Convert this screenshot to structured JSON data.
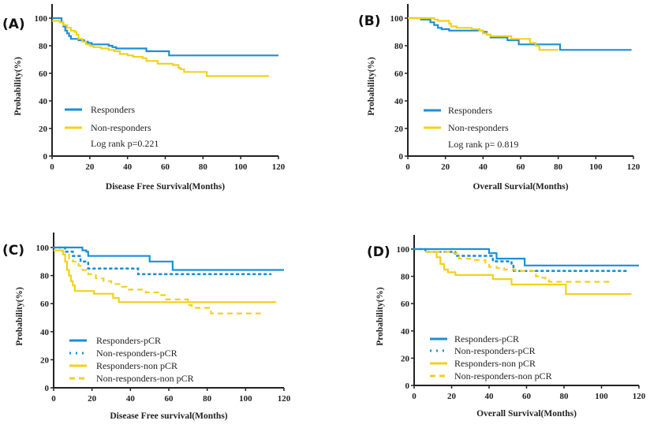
{
  "colors": {
    "blue": "#1b8fd5",
    "yellow": "#f2d11b",
    "axis": "#222222"
  },
  "chart_data": [
    {
      "type": "line",
      "step": true,
      "panel_label": "(A)",
      "xlabel": "Disease Free Survival(Months)",
      "ylabel": "Probability(%)",
      "xlim": [
        0,
        120
      ],
      "ylim": [
        0,
        110
      ],
      "xticks": [
        0,
        20,
        40,
        60,
        80,
        100,
        120
      ],
      "yticks": [
        0,
        20,
        40,
        60,
        80,
        100
      ],
      "grid": false,
      "legend_placement": "lower-left",
      "annotation": "Log rank p=0.221",
      "series": [
        {
          "name": "Responders",
          "color": "blue",
          "style": "solid",
          "points": [
            [
              0,
              100
            ],
            [
              3,
              100
            ],
            [
              5,
              97
            ],
            [
              6,
              94
            ],
            [
              7,
              91
            ],
            [
              8,
              89
            ],
            [
              9,
              87
            ],
            [
              10,
              85
            ],
            [
              14,
              84
            ],
            [
              17,
              83
            ],
            [
              19,
              82
            ],
            [
              21,
              81
            ],
            [
              30,
              80
            ],
            [
              32,
              79
            ],
            [
              34,
              78
            ],
            [
              50,
              78
            ],
            [
              50,
              76
            ],
            [
              62,
              76
            ],
            [
              62,
              73
            ],
            [
              120,
              73
            ]
          ]
        },
        {
          "name": "Non-responders",
          "color": "yellow",
          "style": "solid",
          "points": [
            [
              0,
              98
            ],
            [
              4,
              97
            ],
            [
              6,
              95
            ],
            [
              8,
              93
            ],
            [
              10,
              91
            ],
            [
              12,
              90
            ],
            [
              13,
              88
            ],
            [
              14,
              85
            ],
            [
              16,
              83
            ],
            [
              18,
              81
            ],
            [
              20,
              80
            ],
            [
              22,
              79
            ],
            [
              26,
              78
            ],
            [
              30,
              77
            ],
            [
              33,
              76
            ],
            [
              36,
              74
            ],
            [
              40,
              73
            ],
            [
              43,
              72
            ],
            [
              48,
              71
            ],
            [
              50,
              69
            ],
            [
              54,
              69
            ],
            [
              56,
              67
            ],
            [
              64,
              66
            ],
            [
              67,
              64
            ],
            [
              68,
              63
            ],
            [
              70,
              61
            ],
            [
              80,
              61
            ],
            [
              82,
              58
            ],
            [
              115,
              58
            ]
          ]
        }
      ]
    },
    {
      "type": "line",
      "step": true,
      "panel_label": "(B)",
      "xlabel": "Overall Survial(Months)",
      "ylabel": "Probability(%)",
      "xlim": [
        0,
        120
      ],
      "ylim": [
        0,
        110
      ],
      "xticks": [
        0,
        20,
        40,
        60,
        80,
        100,
        120
      ],
      "yticks": [
        0,
        20,
        40,
        60,
        80,
        100
      ],
      "grid": false,
      "legend_placement": "lower-left",
      "annotation": "Log rank p= 0.819",
      "series": [
        {
          "name": "Responders",
          "color": "blue",
          "style": "solid",
          "points": [
            [
              0,
              100
            ],
            [
              6,
              100
            ],
            [
              7,
              99
            ],
            [
              10,
              99
            ],
            [
              12,
              97
            ],
            [
              14,
              95
            ],
            [
              16,
              93
            ],
            [
              18,
              92
            ],
            [
              22,
              91
            ],
            [
              38,
              91
            ],
            [
              40,
              90
            ],
            [
              42,
              88
            ],
            [
              44,
              86
            ],
            [
              52,
              86
            ],
            [
              53,
              84
            ],
            [
              58,
              84
            ],
            [
              59,
              81
            ],
            [
              81,
              81
            ],
            [
              81,
              77
            ],
            [
              119,
              77
            ]
          ]
        },
        {
          "name": "Non-responders",
          "color": "yellow",
          "style": "solid",
          "points": [
            [
              0,
              100
            ],
            [
              12,
              100
            ],
            [
              14,
              99
            ],
            [
              16,
              98
            ],
            [
              20,
              98
            ],
            [
              22,
              96
            ],
            [
              23,
              94
            ],
            [
              26,
              93
            ],
            [
              30,
              93
            ],
            [
              34,
              92
            ],
            [
              38,
              91
            ],
            [
              40,
              89
            ],
            [
              42,
              88
            ],
            [
              44,
              87
            ],
            [
              54,
              87
            ],
            [
              55,
              85
            ],
            [
              64,
              85
            ],
            [
              65,
              82
            ],
            [
              68,
              80
            ],
            [
              70,
              77
            ],
            [
              80,
              77
            ]
          ]
        }
      ]
    },
    {
      "type": "line",
      "step": true,
      "panel_label": "(C)",
      "xlabel": "Disease Free survival(Months)",
      "ylabel": "Probability(%)",
      "xlim": [
        0,
        120
      ],
      "ylim": [
        0,
        110
      ],
      "xticks": [
        0,
        20,
        40,
        60,
        80,
        100,
        120
      ],
      "yticks": [
        0,
        20,
        40,
        60,
        80,
        100
      ],
      "grid": false,
      "legend_placement": "lower-left",
      "series": [
        {
          "name": "Responders-pCR",
          "color": "blue",
          "style": "solid",
          "points": [
            [
              0,
              100
            ],
            [
              14,
              100
            ],
            [
              15,
              98
            ],
            [
              17,
              97
            ],
            [
              18,
              94
            ],
            [
              50,
              94
            ],
            [
              50,
              90
            ],
            [
              62,
              90
            ],
            [
              62,
              84
            ],
            [
              120,
              84
            ]
          ]
        },
        {
          "name": "Non-responders-pCR",
          "color": "blue",
          "style": "dotted",
          "points": [
            [
              0,
              100
            ],
            [
              5,
              100
            ],
            [
              6,
              97
            ],
            [
              10,
              94
            ],
            [
              14,
              90
            ],
            [
              18,
              85
            ],
            [
              43,
              85
            ],
            [
              44,
              81
            ],
            [
              113,
              81
            ]
          ]
        },
        {
          "name": "Responders-non pCR",
          "color": "yellow",
          "style": "solid",
          "points": [
            [
              0,
              98
            ],
            [
              4,
              98
            ],
            [
              5,
              95
            ],
            [
              6,
              90
            ],
            [
              7,
              84
            ],
            [
              8,
              80
            ],
            [
              9,
              76
            ],
            [
              10,
              73
            ],
            [
              11,
              69
            ],
            [
              20,
              69
            ],
            [
              21,
              67
            ],
            [
              30,
              67
            ],
            [
              31,
              64
            ],
            [
              34,
              61
            ],
            [
              116,
              61
            ]
          ]
        },
        {
          "name": "Non-responders-non pCR",
          "color": "yellow",
          "style": "dashed",
          "points": [
            [
              0,
              98
            ],
            [
              3,
              97
            ],
            [
              5,
              95
            ],
            [
              8,
              92
            ],
            [
              10,
              90
            ],
            [
              13,
              87
            ],
            [
              15,
              84
            ],
            [
              18,
              81
            ],
            [
              22,
              78
            ],
            [
              26,
              76
            ],
            [
              30,
              74
            ],
            [
              35,
              72
            ],
            [
              38,
              70
            ],
            [
              44,
              70
            ],
            [
              48,
              68
            ],
            [
              56,
              66
            ],
            [
              58,
              63
            ],
            [
              68,
              63
            ],
            [
              70,
              59
            ],
            [
              72,
              57
            ],
            [
              82,
              57
            ],
            [
              82,
              53
            ],
            [
              108,
              53
            ]
          ]
        }
      ]
    },
    {
      "type": "line",
      "step": true,
      "panel_label": "(D)",
      "xlabel": "Overall Survival(Months)",
      "ylabel": "Probability(%)",
      "xlim": [
        0,
        120
      ],
      "ylim": [
        0,
        110
      ],
      "xticks": [
        0,
        20,
        40,
        60,
        80,
        100,
        120
      ],
      "yticks": [
        0,
        20,
        40,
        60,
        80,
        100
      ],
      "grid": false,
      "legend_placement": "lower-left",
      "series": [
        {
          "name": "Responders-pCR",
          "color": "blue",
          "style": "solid",
          "points": [
            [
              0,
              100
            ],
            [
              40,
              100
            ],
            [
              40,
              97
            ],
            [
              44,
              97
            ],
            [
              44,
              93
            ],
            [
              59,
              93
            ],
            [
              59,
              88
            ],
            [
              120,
              88
            ]
          ]
        },
        {
          "name": "Non-responders-pCR",
          "color": "blue",
          "style": "dotted",
          "points": [
            [
              0,
              100
            ],
            [
              5,
              100
            ],
            [
              6,
              98
            ],
            [
              18,
              98
            ],
            [
              22,
              95
            ],
            [
              40,
              95
            ],
            [
              42,
              91
            ],
            [
              50,
              91
            ],
            [
              52,
              88
            ],
            [
              53,
              84
            ],
            [
              115,
              84
            ]
          ]
        },
        {
          "name": "Responders-non pCR",
          "color": "yellow",
          "style": "solid",
          "points": [
            [
              6,
              98
            ],
            [
              10,
              98
            ],
            [
              12,
              94
            ],
            [
              14,
              89
            ],
            [
              16,
              85
            ],
            [
              18,
              83
            ],
            [
              22,
              83
            ],
            [
              22,
              81
            ],
            [
              40,
              81
            ],
            [
              42,
              78
            ],
            [
              52,
              78
            ],
            [
              52,
              74
            ],
            [
              80,
              74
            ],
            [
              81,
              67
            ],
            [
              116,
              67
            ]
          ]
        },
        {
          "name": "Non-responders-non pCR",
          "color": "yellow",
          "style": "dashed",
          "points": [
            [
              6,
              98
            ],
            [
              16,
              98
            ],
            [
              20,
              97
            ],
            [
              24,
              93
            ],
            [
              30,
              92
            ],
            [
              38,
              90
            ],
            [
              40,
              87
            ],
            [
              44,
              86
            ],
            [
              48,
              85
            ],
            [
              54,
              84
            ],
            [
              64,
              84
            ],
            [
              65,
              80
            ],
            [
              68,
              79
            ],
            [
              70,
              77
            ],
            [
              72,
              76
            ],
            [
              106,
              76
            ]
          ]
        }
      ]
    }
  ]
}
